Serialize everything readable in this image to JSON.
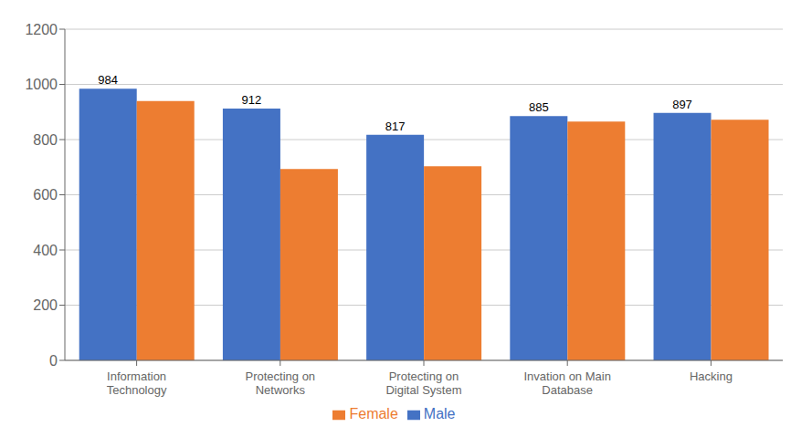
{
  "chart_data": {
    "type": "bar",
    "categories": [
      "Information\nTechnology",
      "Protecting on\nNetworks",
      "Protecting on\nDigital System",
      "Invation on Main\nDatabase",
      "Hacking"
    ],
    "series": [
      {
        "name": "Male",
        "color": "#4472C4",
        "values": [
          984,
          912,
          817,
          885,
          897
        ],
        "data_labels": true
      },
      {
        "name": "Female",
        "color": "#ED7D31",
        "values": [
          940,
          693,
          703,
          865,
          872
        ]
      }
    ],
    "ylim": [
      0,
      1200
    ],
    "yticks": [
      0,
      200,
      400,
      600,
      800,
      1000,
      1200
    ],
    "grid": true,
    "legend": "bottom"
  }
}
